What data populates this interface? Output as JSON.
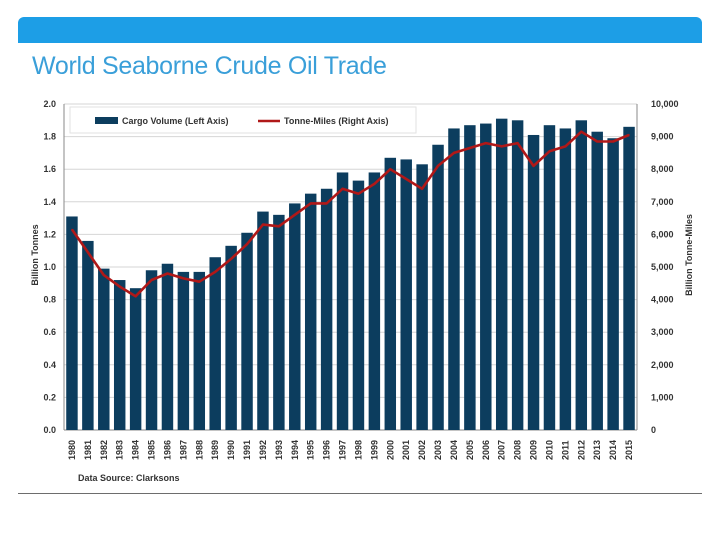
{
  "slide": {
    "title": "World Seaborne Crude Oil Trade",
    "source": "Data Source: Clarksons"
  },
  "colors": {
    "accent": "#1d9ee6",
    "title": "#3a9fd9",
    "bar": "#0c3d5e",
    "line": "#b01818"
  },
  "chart_data": {
    "type": "bar",
    "title": "",
    "xlabel": "",
    "ylabel": "Billion Tonnes",
    "y2label": "Billion Tonne-Miles",
    "ylim": [
      0,
      2.0
    ],
    "y2lim": [
      0,
      10000
    ],
    "grid": true,
    "legend_position": "top",
    "y_ticks": [
      "0.0",
      "0.2",
      "0.4",
      "0.6",
      "0.8",
      "1.0",
      "1.2",
      "1.4",
      "1.6",
      "1.8",
      "2.0"
    ],
    "y2_ticks": [
      "0",
      "1,000",
      "2,000",
      "3,000",
      "4,000",
      "5,000",
      "6,000",
      "7,000",
      "8,000",
      "9,000",
      "10,000"
    ],
    "categories": [
      "1980",
      "1981",
      "1982",
      "1983",
      "1984",
      "1985",
      "1986",
      "1987",
      "1988",
      "1989",
      "1990",
      "1991",
      "1992",
      "1993",
      "1994",
      "1995",
      "1996",
      "1997",
      "1998",
      "1999",
      "2000",
      "2001",
      "2002",
      "2003",
      "2004",
      "2005",
      "2006",
      "2007",
      "2008",
      "2009",
      "2010",
      "2011",
      "2012",
      "2013",
      "2014",
      "2015"
    ],
    "series": [
      {
        "name": "Cargo Volume (Left Axis)",
        "type": "bar",
        "axis": "left",
        "values": [
          1.31,
          1.16,
          0.99,
          0.92,
          0.87,
          0.98,
          1.02,
          0.97,
          0.97,
          1.06,
          1.13,
          1.21,
          1.34,
          1.32,
          1.39,
          1.45,
          1.48,
          1.58,
          1.53,
          1.58,
          1.67,
          1.66,
          1.63,
          1.75,
          1.85,
          1.87,
          1.88,
          1.91,
          1.9,
          1.81,
          1.87,
          1.85,
          1.9,
          1.83,
          1.79,
          1.86
        ]
      },
      {
        "name": "Tonne-Miles (Right Axis)",
        "type": "line",
        "axis": "right",
        "values": [
          6150,
          5450,
          4750,
          4400,
          4100,
          4600,
          4800,
          4650,
          4550,
          4850,
          5250,
          5700,
          6300,
          6250,
          6600,
          6950,
          6950,
          7400,
          7250,
          7550,
          8000,
          7700,
          7400,
          8100,
          8500,
          8650,
          8800,
          8700,
          8800,
          8100,
          8550,
          8700,
          9150,
          8850,
          8850,
          9050
        ]
      }
    ]
  }
}
